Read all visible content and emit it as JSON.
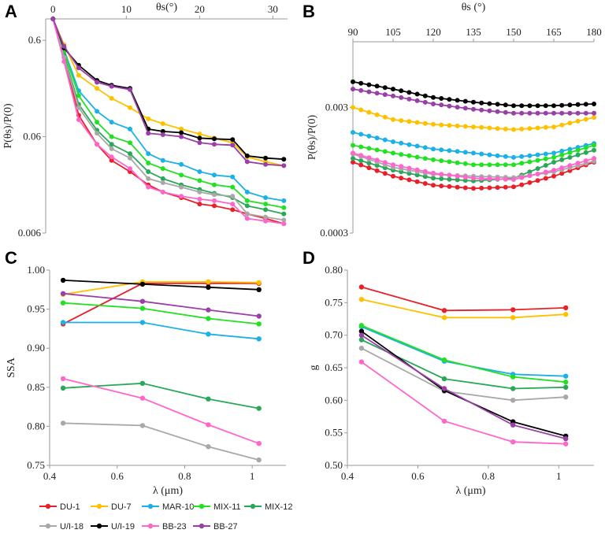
{
  "legend": [
    {
      "name": "DU-1",
      "color": "#e8202a"
    },
    {
      "name": "DU-7",
      "color": "#ffc000"
    },
    {
      "name": "MAR-10",
      "color": "#1cb0e8"
    },
    {
      "name": "MIX-11",
      "color": "#22e022"
    },
    {
      "name": "MIX-12",
      "color": "#2aa85a"
    },
    {
      "name": "U/I-18",
      "color": "#a8a8a8"
    },
    {
      "name": "U/I-19",
      "color": "#000000"
    },
    {
      "name": "BB-23",
      "color": "#ff66cc"
    },
    {
      "name": "BB-27",
      "color": "#9a3ea8"
    }
  ],
  "chart_data": [
    {
      "panel": "A",
      "type": "line",
      "title": "",
      "xlabel": "θs(°)",
      "ylabel": "P(θs)/P(0)",
      "xlim": [
        -1,
        32
      ],
      "ylim": [
        0.006,
        1.0
      ],
      "yscale": "log",
      "xticks": [
        "0",
        "10",
        "20",
        "30"
      ],
      "xtick_values": [
        0,
        10,
        20,
        30
      ],
      "yticks": [
        "0.6",
        "0.06",
        "0.006"
      ],
      "ytick_values": [
        0.6,
        0.06,
        0.006
      ],
      "x": [
        0,
        1.5,
        3.5,
        6,
        8,
        10.5,
        13,
        15,
        17.5,
        20,
        22,
        24.5,
        26.5,
        29,
        31.5
      ],
      "series": [
        {
          "name": "DU-1",
          "values": [
            1.0,
            0.4,
            0.1,
            0.05,
            0.034,
            0.026,
            0.019,
            0.016,
            0.014,
            0.012,
            0.0115,
            0.0105,
            0.0095,
            0.0085,
            0.0075
          ]
        },
        {
          "name": "DU-7",
          "values": [
            1.0,
            0.54,
            0.26,
            0.19,
            0.15,
            0.12,
            0.092,
            0.082,
            0.072,
            0.064,
            0.058,
            0.052,
            0.037,
            0.033,
            0.03
          ]
        },
        {
          "name": "MAR-10",
          "values": [
            1.0,
            0.48,
            0.18,
            0.11,
            0.085,
            0.072,
            0.04,
            0.034,
            0.031,
            0.026,
            0.024,
            0.023,
            0.016,
            0.014,
            0.013
          ]
        },
        {
          "name": "MIX-11",
          "values": [
            1.0,
            0.46,
            0.16,
            0.085,
            0.06,
            0.052,
            0.032,
            0.028,
            0.024,
            0.021,
            0.019,
            0.018,
            0.013,
            0.012,
            0.011
          ]
        },
        {
          "name": "MIX-12",
          "values": [
            1.0,
            0.42,
            0.13,
            0.07,
            0.05,
            0.04,
            0.026,
            0.022,
            0.019,
            0.017,
            0.0155,
            0.014,
            0.0115,
            0.0105,
            0.0095
          ]
        },
        {
          "name": "U/I-18",
          "values": [
            1.0,
            0.4,
            0.12,
            0.065,
            0.045,
            0.036,
            0.022,
            0.02,
            0.018,
            0.016,
            0.015,
            0.0145,
            0.0095,
            0.0088,
            0.0082
          ]
        },
        {
          "name": "U/I-19",
          "values": [
            1.0,
            0.5,
            0.33,
            0.23,
            0.205,
            0.19,
            0.072,
            0.068,
            0.066,
            0.058,
            0.057,
            0.056,
            0.038,
            0.036,
            0.035
          ]
        },
        {
          "name": "BB-23",
          "values": [
            1.0,
            0.36,
            0.09,
            0.05,
            0.037,
            0.028,
            0.018,
            0.016,
            0.0145,
            0.0135,
            0.013,
            0.012,
            0.0085,
            0.008,
            0.0075
          ]
        },
        {
          "name": "BB-27",
          "values": [
            1.0,
            0.52,
            0.31,
            0.22,
            0.2,
            0.185,
            0.065,
            0.063,
            0.06,
            0.052,
            0.05,
            0.049,
            0.033,
            0.031,
            0.03
          ]
        }
      ]
    },
    {
      "panel": "B",
      "type": "line",
      "title": "",
      "xlabel": "θs (°)",
      "ylabel": "P(θs)/P(0)",
      "xlim": [
        90,
        180
      ],
      "ylim": [
        0.0003,
        0.01
      ],
      "yscale": "log",
      "xticks": [
        "90",
        "105",
        "120",
        "135",
        "150",
        "165",
        "180"
      ],
      "xtick_values": [
        90,
        105,
        120,
        135,
        150,
        165,
        180
      ],
      "yticks": [
        "0.003",
        "0.0003"
      ],
      "ytick_values": [
        0.003,
        0.0003
      ],
      "x": [
        90,
        105,
        120,
        135,
        150,
        165,
        180
      ],
      "series": [
        {
          "name": "DU-1",
          "values": [
            0.0011,
            0.00085,
            0.00072,
            0.00068,
            0.0007,
            0.00085,
            0.0011
          ]
        },
        {
          "name": "DU-7",
          "values": [
            0.003,
            0.0024,
            0.0022,
            0.0021,
            0.002,
            0.0021,
            0.0025
          ]
        },
        {
          "name": "MAR-10",
          "values": [
            0.0019,
            0.0016,
            0.0014,
            0.0013,
            0.0012,
            0.0013,
            0.00155
          ]
        },
        {
          "name": "MIX-11",
          "values": [
            0.0015,
            0.0013,
            0.00115,
            0.00105,
            0.00105,
            0.0012,
            0.0015
          ]
        },
        {
          "name": "MIX-12",
          "values": [
            0.00118,
            0.00095,
            0.00082,
            0.00078,
            0.00082,
            0.0011,
            0.00137
          ]
        },
        {
          "name": "U/I-18",
          "values": [
            0.00128,
            0.001,
            0.00088,
            0.00085,
            0.00083,
            0.00092,
            0.00112
          ]
        },
        {
          "name": "U/I-19",
          "values": [
            0.0048,
            0.0042,
            0.0036,
            0.0033,
            0.0031,
            0.0031,
            0.0032
          ]
        },
        {
          "name": "BB-23",
          "values": [
            0.0013,
            0.00105,
            0.0009,
            0.00082,
            0.0008,
            0.00095,
            0.00118
          ]
        },
        {
          "name": "BB-27",
          "values": [
            0.0042,
            0.0037,
            0.0032,
            0.0029,
            0.0027,
            0.0027,
            0.0027
          ]
        }
      ]
    },
    {
      "panel": "C",
      "type": "line",
      "title": "",
      "xlabel": "λ (μm)",
      "ylabel": "SSA",
      "xlim": [
        0.4,
        1.1
      ],
      "ylim": [
        0.75,
        1.0
      ],
      "xticks": [
        "0.4",
        "0.6",
        "0.8",
        "1"
      ],
      "xtick_values": [
        0.4,
        0.6,
        0.8,
        1.0
      ],
      "yticks": [
        "0.75",
        "0.80",
        "0.85",
        "0.90",
        "0.95",
        "1.00"
      ],
      "ytick_values": [
        0.75,
        0.8,
        0.85,
        0.9,
        0.95,
        1.0
      ],
      "x": [
        0.44,
        0.675,
        0.87,
        1.02
      ],
      "series": [
        {
          "name": "DU-1",
          "values": [
            0.931,
            0.983,
            0.983,
            0.983
          ]
        },
        {
          "name": "DU-7",
          "values": [
            0.969,
            0.985,
            0.985,
            0.984
          ]
        },
        {
          "name": "MAR-10",
          "values": [
            0.933,
            0.933,
            0.918,
            0.912
          ]
        },
        {
          "name": "MIX-11",
          "values": [
            0.958,
            0.951,
            0.938,
            0.931
          ]
        },
        {
          "name": "MIX-12",
          "values": [
            0.849,
            0.855,
            0.835,
            0.823
          ]
        },
        {
          "name": "U/I-18",
          "values": [
            0.804,
            0.801,
            0.774,
            0.757
          ]
        },
        {
          "name": "U/I-19",
          "values": [
            0.987,
            0.982,
            0.978,
            0.975
          ]
        },
        {
          "name": "BB-23",
          "values": [
            0.861,
            0.836,
            0.802,
            0.778
          ]
        },
        {
          "name": "BB-27",
          "values": [
            0.97,
            0.96,
            0.949,
            0.941
          ]
        }
      ]
    },
    {
      "panel": "D",
      "type": "line",
      "title": "",
      "xlabel": "λ (μm)",
      "ylabel": "g",
      "xlim": [
        0.4,
        1.1
      ],
      "ylim": [
        0.5,
        0.8
      ],
      "xticks": [
        "0.4",
        "0.6",
        "0.8",
        "1"
      ],
      "xtick_values": [
        0.4,
        0.6,
        0.8,
        1.0
      ],
      "yticks": [
        "0.50",
        "0.55",
        "0.60",
        "0.65",
        "0.70",
        "0.75",
        "0.80"
      ],
      "ytick_values": [
        0.5,
        0.55,
        0.6,
        0.65,
        0.7,
        0.75,
        0.8
      ],
      "x": [
        0.44,
        0.675,
        0.87,
        1.02
      ],
      "series": [
        {
          "name": "DU-1",
          "values": [
            0.774,
            0.738,
            0.739,
            0.742
          ]
        },
        {
          "name": "DU-7",
          "values": [
            0.755,
            0.727,
            0.727,
            0.732
          ]
        },
        {
          "name": "MAR-10",
          "values": [
            0.713,
            0.66,
            0.64,
            0.637
          ]
        },
        {
          "name": "MIX-11",
          "values": [
            0.715,
            0.662,
            0.636,
            0.628
          ]
        },
        {
          "name": "MIX-12",
          "values": [
            0.693,
            0.633,
            0.618,
            0.62
          ]
        },
        {
          "name": "U/I-18",
          "values": [
            0.68,
            0.614,
            0.6,
            0.605
          ]
        },
        {
          "name": "U/I-19",
          "values": [
            0.706,
            0.615,
            0.567,
            0.545
          ]
        },
        {
          "name": "BB-23",
          "values": [
            0.659,
            0.568,
            0.536,
            0.533
          ]
        },
        {
          "name": "BB-27",
          "values": [
            0.7,
            0.618,
            0.562,
            0.541
          ]
        }
      ]
    }
  ]
}
